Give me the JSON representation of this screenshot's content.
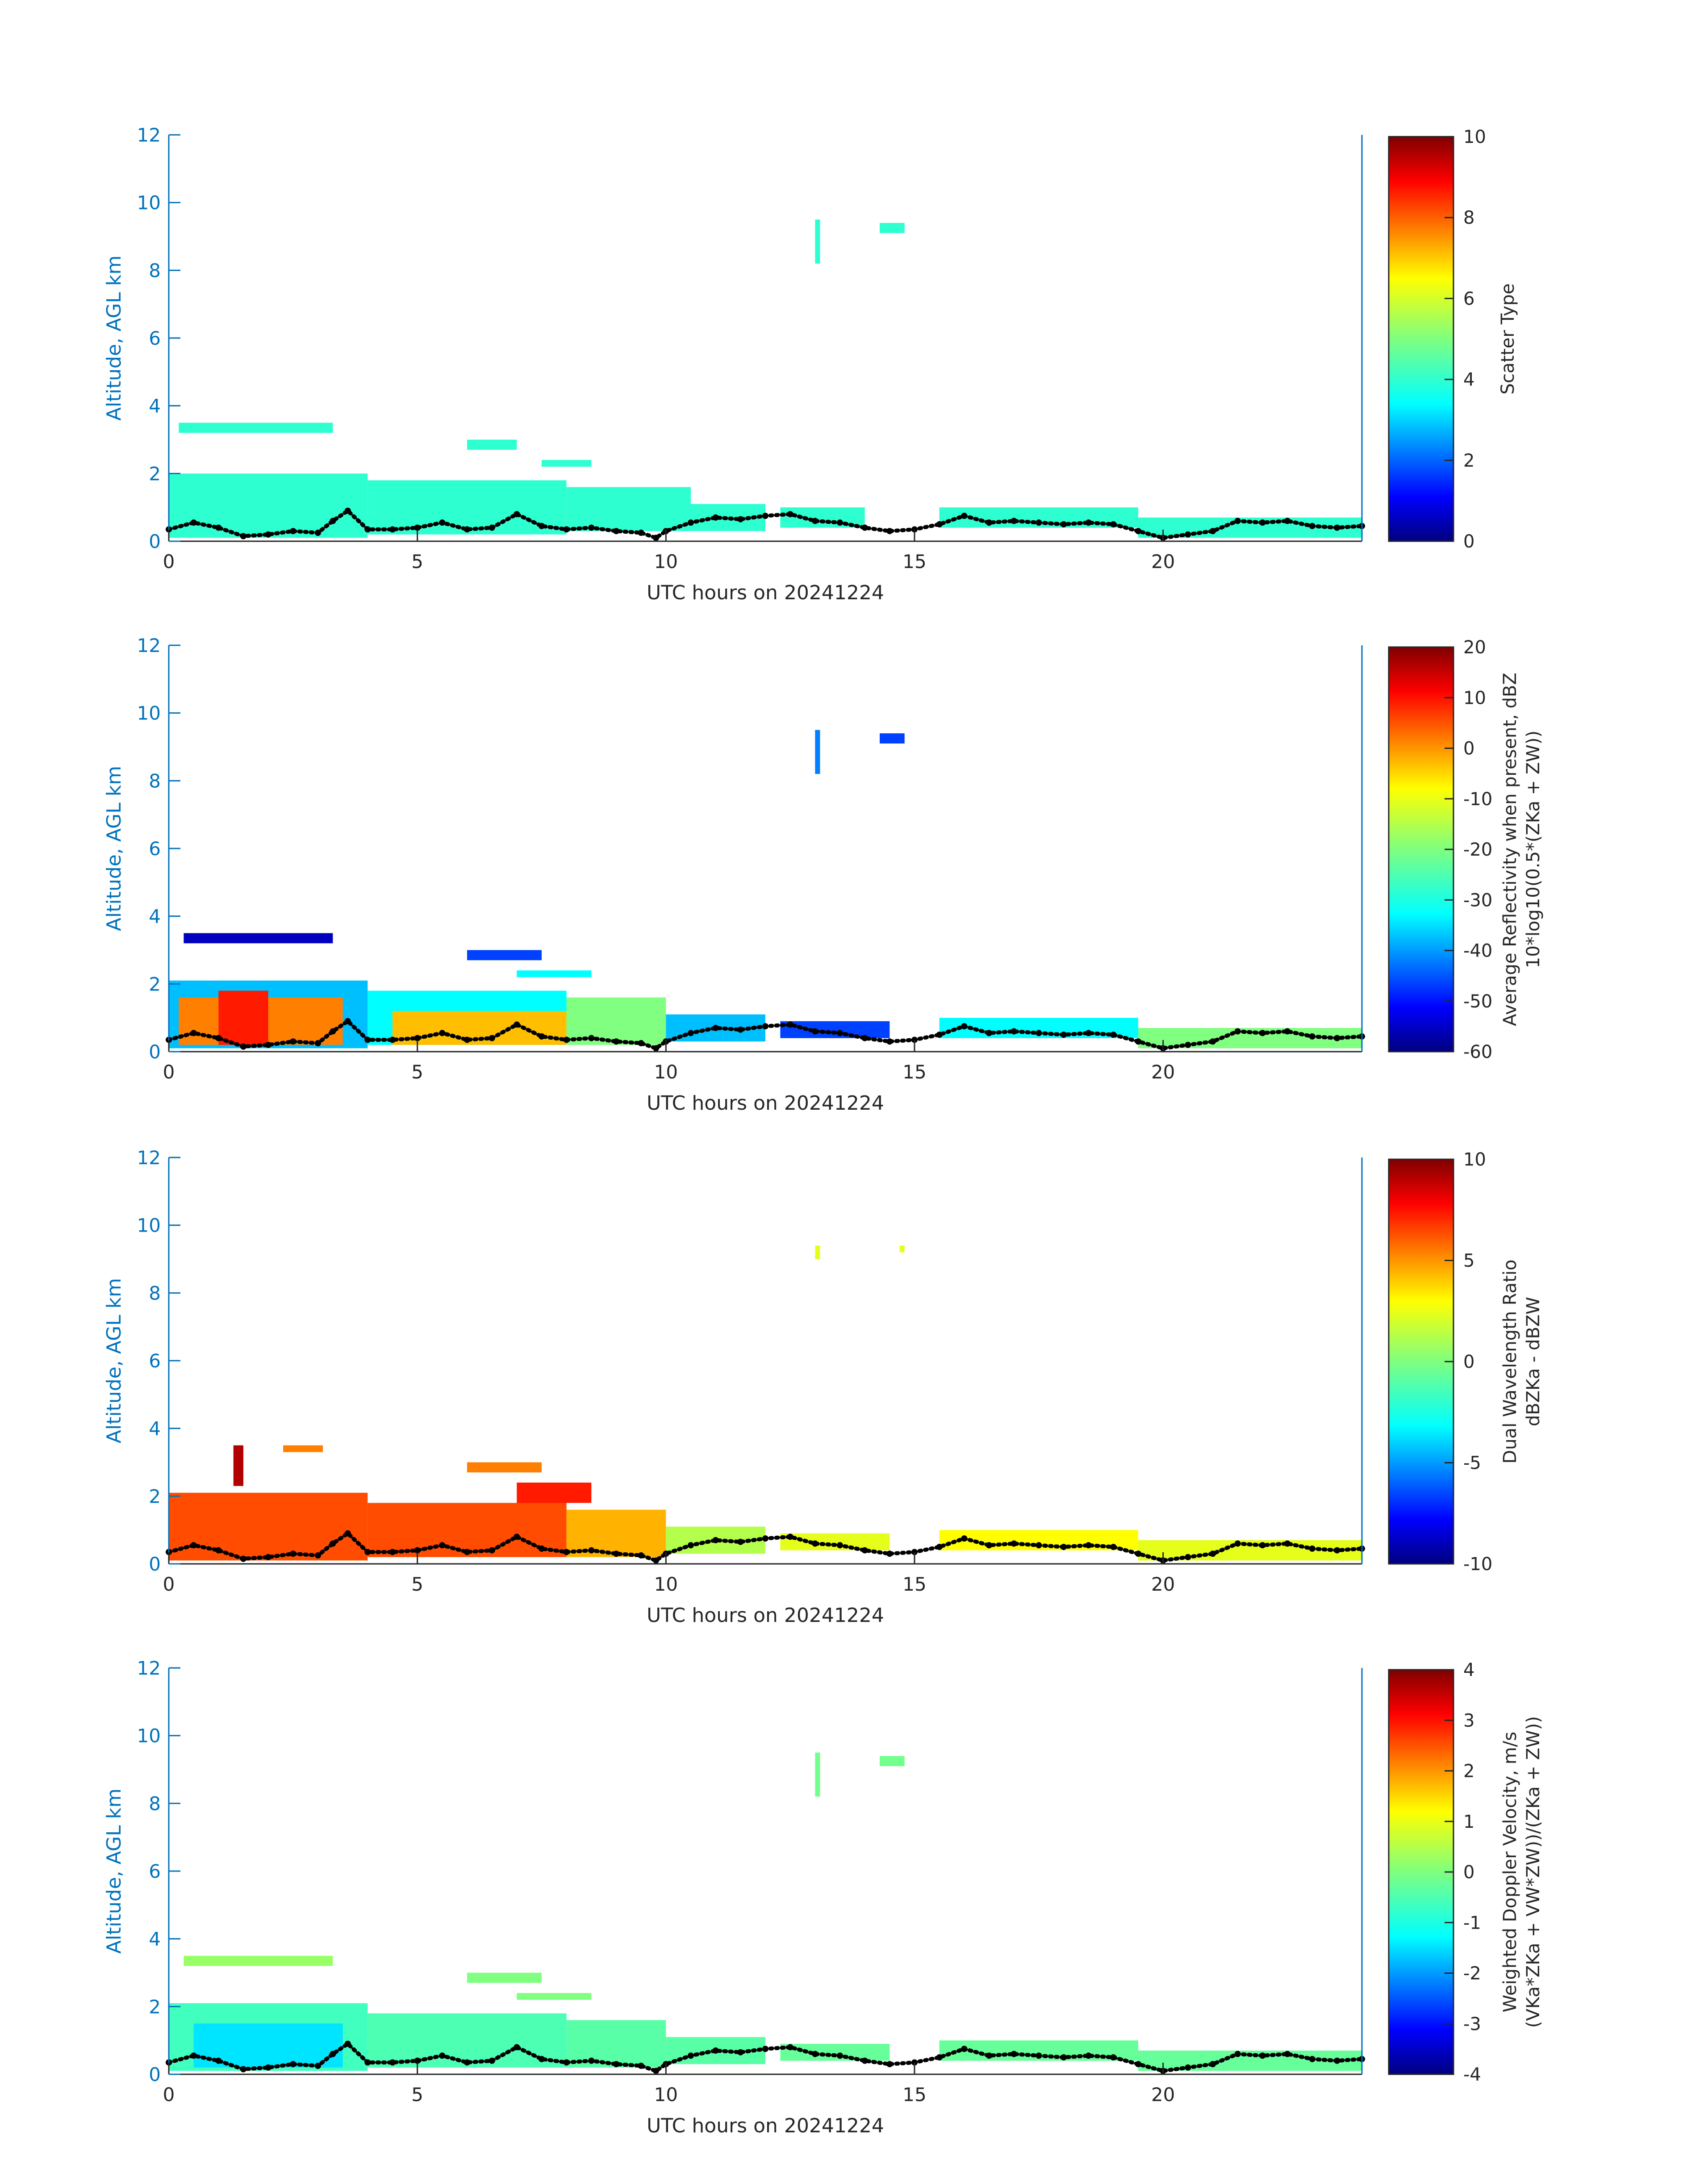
{
  "chart_data": [
    {
      "type": "heatmap",
      "title": "",
      "xlabel": "UTC hours on 20241224",
      "ylabel": "Altitude, AGL km",
      "xlim": [
        0,
        24
      ],
      "ylim": [
        0,
        12
      ],
      "xticks": [
        0,
        5,
        10,
        15,
        20
      ],
      "yticks": [
        0,
        2,
        4,
        6,
        8,
        10,
        12
      ],
      "colorbar": {
        "label": [
          "Scatter Type"
        ],
        "range": [
          0,
          10
        ],
        "ticks": [
          0,
          2,
          4,
          6,
          8,
          10
        ]
      },
      "regions": [
        {
          "x0": 0.0,
          "x1": 4.0,
          "y0": 0.1,
          "y1": 2.0,
          "value": 4.2
        },
        {
          "x0": 4.0,
          "x1": 8.0,
          "y0": 0.2,
          "y1": 1.8,
          "value": 4.2
        },
        {
          "x0": 8.0,
          "x1": 10.5,
          "y0": 0.3,
          "y1": 1.6,
          "value": 4.2
        },
        {
          "x0": 10.5,
          "x1": 12.0,
          "y0": 0.3,
          "y1": 1.1,
          "value": 4.2
        },
        {
          "x0": 12.3,
          "x1": 14.0,
          "y0": 0.4,
          "y1": 1.0,
          "value": 4.2
        },
        {
          "x0": 15.5,
          "x1": 19.5,
          "y0": 0.4,
          "y1": 1.0,
          "value": 4.2
        },
        {
          "x0": 19.5,
          "x1": 24.0,
          "y0": 0.1,
          "y1": 0.7,
          "value": 4.2
        },
        {
          "x0": 0.2,
          "x1": 3.3,
          "y0": 3.2,
          "y1": 3.5,
          "value": 4.2
        },
        {
          "x0": 6.0,
          "x1": 7.0,
          "y0": 2.7,
          "y1": 3.0,
          "value": 4.2
        },
        {
          "x0": 7.5,
          "x1": 8.5,
          "y0": 2.2,
          "y1": 2.4,
          "value": 4.2
        },
        {
          "x0": 13.0,
          "x1": 13.1,
          "y0": 8.2,
          "y1": 9.5,
          "value": 4.2
        },
        {
          "x0": 14.3,
          "x1": 14.8,
          "y0": 9.1,
          "y1": 9.4,
          "value": 4.2
        }
      ]
    },
    {
      "type": "heatmap",
      "title": "",
      "xlabel": "UTC hours on 20241224",
      "ylabel": "Altitude, AGL km",
      "xlim": [
        0,
        24
      ],
      "ylim": [
        0,
        12
      ],
      "xticks": [
        0,
        5,
        10,
        15,
        20
      ],
      "yticks": [
        0,
        2,
        4,
        6,
        8,
        10,
        12
      ],
      "colorbar": {
        "label": [
          "Average Reflectivity when present, dBZ",
          "10*log10(0.5*(ZKa + ZW))"
        ],
        "range": [
          -60,
          20
        ],
        "ticks": [
          -60,
          -50,
          -40,
          -30,
          -20,
          -10,
          0,
          10,
          20
        ]
      },
      "regions": [
        {
          "x0": 0.0,
          "x1": 4.0,
          "y0": 0.1,
          "y1": 2.1,
          "value": -35
        },
        {
          "x0": 0.2,
          "x1": 3.5,
          "y0": 0.2,
          "y1": 1.6,
          "value": 0
        },
        {
          "x0": 1.0,
          "x1": 2.0,
          "y0": 0.2,
          "y1": 1.8,
          "value": 8
        },
        {
          "x0": 4.0,
          "x1": 8.0,
          "y0": 0.2,
          "y1": 1.8,
          "value": -30
        },
        {
          "x0": 4.5,
          "x1": 8.0,
          "y0": 0.2,
          "y1": 1.2,
          "value": -5
        },
        {
          "x0": 8.0,
          "x1": 10.0,
          "y0": 0.2,
          "y1": 1.6,
          "value": -20
        },
        {
          "x0": 10.0,
          "x1": 12.0,
          "y0": 0.3,
          "y1": 1.1,
          "value": -35
        },
        {
          "x0": 12.3,
          "x1": 14.5,
          "y0": 0.4,
          "y1": 0.9,
          "value": -45
        },
        {
          "x0": 15.5,
          "x1": 19.5,
          "y0": 0.4,
          "y1": 1.0,
          "value": -30
        },
        {
          "x0": 19.5,
          "x1": 24.0,
          "y0": 0.1,
          "y1": 0.7,
          "value": -20
        },
        {
          "x0": 0.3,
          "x1": 3.3,
          "y0": 3.2,
          "y1": 3.5,
          "value": -55
        },
        {
          "x0": 6.0,
          "x1": 7.5,
          "y0": 2.7,
          "y1": 3.0,
          "value": -45
        },
        {
          "x0": 7.0,
          "x1": 8.5,
          "y0": 2.2,
          "y1": 2.4,
          "value": -30
        },
        {
          "x0": 13.0,
          "x1": 13.1,
          "y0": 8.2,
          "y1": 9.5,
          "value": -40
        },
        {
          "x0": 14.3,
          "x1": 14.8,
          "y0": 9.1,
          "y1": 9.4,
          "value": -45
        }
      ]
    },
    {
      "type": "heatmap",
      "title": "",
      "xlabel": "UTC hours on 20241224",
      "ylabel": "Altitude, AGL km",
      "xlim": [
        0,
        24
      ],
      "ylim": [
        0,
        12
      ],
      "xticks": [
        0,
        5,
        10,
        15,
        20
      ],
      "yticks": [
        0,
        2,
        4,
        6,
        8,
        10,
        12
      ],
      "colorbar": {
        "label": [
          "Dual Wavelength Ratio",
          "dBZKa - dBZW"
        ],
        "range": [
          -10,
          10
        ],
        "ticks": [
          -10,
          -5,
          0,
          5,
          10
        ]
      },
      "regions": [
        {
          "x0": 0.0,
          "x1": 4.0,
          "y0": 0.1,
          "y1": 2.1,
          "value": 6
        },
        {
          "x0": 1.3,
          "x1": 1.5,
          "y0": 2.3,
          "y1": 3.5,
          "value": 9
        },
        {
          "x0": 4.0,
          "x1": 8.0,
          "y0": 0.2,
          "y1": 1.8,
          "value": 6
        },
        {
          "x0": 7.0,
          "x1": 8.5,
          "y0": 1.8,
          "y1": 2.4,
          "value": 7
        },
        {
          "x0": 8.0,
          "x1": 10.0,
          "y0": 0.2,
          "y1": 1.6,
          "value": 4
        },
        {
          "x0": 10.0,
          "x1": 12.0,
          "y0": 0.3,
          "y1": 1.1,
          "value": 1
        },
        {
          "x0": 12.3,
          "x1": 14.5,
          "y0": 0.4,
          "y1": 0.9,
          "value": 2
        },
        {
          "x0": 15.5,
          "x1": 19.5,
          "y0": 0.4,
          "y1": 1.0,
          "value": 2.5
        },
        {
          "x0": 19.5,
          "x1": 24.0,
          "y0": 0.1,
          "y1": 0.7,
          "value": 2
        },
        {
          "x0": 2.3,
          "x1": 3.1,
          "y0": 3.3,
          "y1": 3.5,
          "value": 5
        },
        {
          "x0": 6.0,
          "x1": 7.5,
          "y0": 2.7,
          "y1": 3.0,
          "value": 5
        },
        {
          "x0": 13.0,
          "x1": 13.1,
          "y0": 9.0,
          "y1": 9.4,
          "value": 2
        },
        {
          "x0": 14.7,
          "x1": 14.8,
          "y0": 9.2,
          "y1": 9.4,
          "value": 2
        }
      ]
    },
    {
      "type": "heatmap",
      "title": "",
      "xlabel": "UTC hours on 20241224",
      "ylabel": "Altitude, AGL km",
      "xlim": [
        0,
        24
      ],
      "ylim": [
        0,
        12
      ],
      "xticks": [
        0,
        5,
        10,
        15,
        20
      ],
      "yticks": [
        0,
        2,
        4,
        6,
        8,
        10,
        12
      ],
      "colorbar": {
        "label": [
          "Weighted Doppler Velocity, m/s",
          "(VKa*ZKa + VW*ZW))/(ZKa + ZW))"
        ],
        "range": [
          -4,
          4
        ],
        "ticks": [
          -4,
          -3,
          -2,
          -1,
          0,
          1,
          2,
          3,
          4
        ]
      },
      "regions": [
        {
          "x0": 0.0,
          "x1": 4.0,
          "y0": 0.1,
          "y1": 2.1,
          "value": -0.5
        },
        {
          "x0": 0.5,
          "x1": 3.5,
          "y0": 0.2,
          "y1": 1.5,
          "value": -1.2
        },
        {
          "x0": 4.0,
          "x1": 8.0,
          "y0": 0.2,
          "y1": 1.8,
          "value": -0.4
        },
        {
          "x0": 8.0,
          "x1": 10.0,
          "y0": 0.2,
          "y1": 1.6,
          "value": -0.3
        },
        {
          "x0": 10.0,
          "x1": 12.0,
          "y0": 0.3,
          "y1": 1.1,
          "value": -0.3
        },
        {
          "x0": 12.3,
          "x1": 14.5,
          "y0": 0.4,
          "y1": 0.9,
          "value": -0.2
        },
        {
          "x0": 15.5,
          "x1": 19.5,
          "y0": 0.4,
          "y1": 1.0,
          "value": -0.2
        },
        {
          "x0": 19.5,
          "x1": 24.0,
          "y0": 0.1,
          "y1": 0.7,
          "value": -0.2
        },
        {
          "x0": 0.3,
          "x1": 3.3,
          "y0": 3.2,
          "y1": 3.5,
          "value": 0.2
        },
        {
          "x0": 6.0,
          "x1": 7.5,
          "y0": 2.7,
          "y1": 3.0,
          "value": 0
        },
        {
          "x0": 7.0,
          "x1": 8.5,
          "y0": 2.2,
          "y1": 2.4,
          "value": 0
        },
        {
          "x0": 13.0,
          "x1": 13.1,
          "y0": 8.2,
          "y1": 9.5,
          "value": -0.1
        },
        {
          "x0": 14.3,
          "x1": 14.8,
          "y0": 9.1,
          "y1": 9.4,
          "value": -0.1
        }
      ]
    }
  ],
  "cloud_base": [
    [
      0,
      0.35
    ],
    [
      0.5,
      0.55
    ],
    [
      1,
      0.4
    ],
    [
      1.5,
      0.15
    ],
    [
      2,
      0.2
    ],
    [
      2.5,
      0.3
    ],
    [
      3,
      0.25
    ],
    [
      3.3,
      0.6
    ],
    [
      3.6,
      0.9
    ],
    [
      4,
      0.35
    ],
    [
      4.5,
      0.35
    ],
    [
      5,
      0.4
    ],
    [
      5.5,
      0.55
    ],
    [
      6,
      0.35
    ],
    [
      6.5,
      0.4
    ],
    [
      7,
      0.8
    ],
    [
      7.5,
      0.45
    ],
    [
      8,
      0.35
    ],
    [
      8.5,
      0.4
    ],
    [
      9,
      0.3
    ],
    [
      9.5,
      0.25
    ],
    [
      9.8,
      0.1
    ],
    [
      10,
      0.3
    ],
    [
      10.5,
      0.55
    ],
    [
      11,
      0.7
    ],
    [
      11.5,
      0.65
    ],
    [
      12,
      0.75
    ],
    [
      12.5,
      0.8
    ],
    [
      13,
      0.6
    ],
    [
      13.5,
      0.55
    ],
    [
      14,
      0.4
    ],
    [
      14.5,
      0.3
    ],
    [
      15,
      0.35
    ],
    [
      15.5,
      0.5
    ],
    [
      16,
      0.75
    ],
    [
      16.5,
      0.55
    ],
    [
      17,
      0.6
    ],
    [
      17.5,
      0.55
    ],
    [
      18,
      0.5
    ],
    [
      18.5,
      0.55
    ],
    [
      19,
      0.5
    ],
    [
      19.5,
      0.3
    ],
    [
      20,
      0.1
    ],
    [
      20.5,
      0.2
    ],
    [
      21,
      0.3
    ],
    [
      21.5,
      0.6
    ],
    [
      22,
      0.55
    ],
    [
      22.5,
      0.6
    ],
    [
      23,
      0.45
    ],
    [
      23.5,
      0.4
    ],
    [
      24,
      0.45
    ]
  ],
  "colormap": "jet",
  "colors": {
    "axis": "#0072bd",
    "mark": "#000000",
    "text": "#262626"
  }
}
